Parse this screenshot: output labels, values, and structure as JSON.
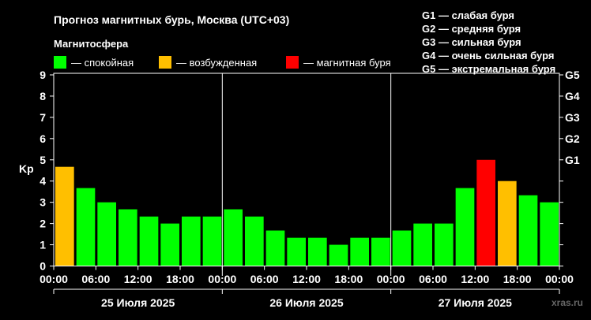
{
  "chart_data": {
    "type": "bar",
    "title": "Прогноз магнитных бурь, Москва (UTC+03)",
    "legend_title": "Магнитосфера",
    "legend": [
      {
        "label": "— спокойная",
        "color": "#00ff00"
      },
      {
        "label": "— возбужденная",
        "color": "#ffbf00"
      },
      {
        "label": "— магнитная буря",
        "color": "#ff0000"
      }
    ],
    "storm_scale": [
      "G1 — слабая буря",
      "G2 — средняя буря",
      "G3 — сильная буря",
      "G4 — очень сильная буря",
      "G5 — экстремальная буря"
    ],
    "ylabel": "Kp",
    "ylim": [
      0,
      9
    ],
    "y_ticks": [
      "0",
      "1",
      "2",
      "3",
      "4",
      "5",
      "6",
      "7",
      "8",
      "9"
    ],
    "right_ticks": [
      {
        "kp": 5,
        "label": "G1"
      },
      {
        "kp": 6,
        "label": "G2"
      },
      {
        "kp": 7,
        "label": "G3"
      },
      {
        "kp": 8,
        "label": "G4"
      },
      {
        "kp": 9,
        "label": "G5"
      }
    ],
    "x_tick_labels": [
      "00:00",
      "06:00",
      "12:00",
      "18:00",
      "00:00",
      "06:00",
      "12:00",
      "18:00",
      "00:00",
      "06:00",
      "12:00",
      "18:00",
      "00:00"
    ],
    "days": [
      "25 Июля 2025",
      "26 Июля 2025",
      "27 Июля 2025"
    ],
    "values": [
      4.67,
      3.67,
      3.0,
      2.67,
      2.33,
      2.0,
      2.33,
      2.33,
      2.67,
      2.33,
      1.67,
      1.33,
      1.33,
      1.0,
      1.33,
      1.33,
      1.67,
      2.0,
      2.0,
      3.67,
      5.0,
      4.0,
      3.33,
      3.0
    ],
    "levels": [
      "active",
      "quiet",
      "quiet",
      "quiet",
      "quiet",
      "quiet",
      "quiet",
      "quiet",
      "quiet",
      "quiet",
      "quiet",
      "quiet",
      "quiet",
      "quiet",
      "quiet",
      "quiet",
      "quiet",
      "quiet",
      "quiet",
      "quiet",
      "storm",
      "active",
      "quiet",
      "quiet"
    ],
    "colors": {
      "quiet": "#00ff00",
      "active": "#ffbf00",
      "storm": "#ff0000"
    }
  },
  "watermark": "xras.ru"
}
